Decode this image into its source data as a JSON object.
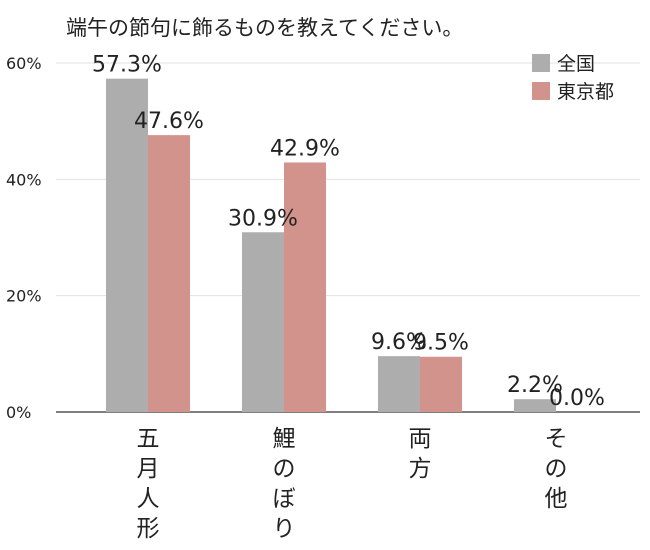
{
  "chart_data": {
    "type": "bar",
    "title": "端午の節句に飾るものを教えてください。",
    "xlabel": "",
    "ylabel": "",
    "categories": [
      "五月人形",
      "鯉のぼり",
      "両方",
      "その他"
    ],
    "series": [
      {
        "name": "全国",
        "color": "#adadad",
        "values": [
          57.3,
          30.9,
          9.6,
          2.2
        ]
      },
      {
        "name": "東京都",
        "color": "#d2938c",
        "values": [
          47.6,
          42.9,
          9.5,
          0.0
        ]
      }
    ],
    "ylim": [
      0,
      60
    ],
    "yticks": [
      0,
      20,
      40,
      60
    ],
    "ytick_labels": [
      "0%",
      "20%",
      "40%",
      "60%"
    ],
    "data_labels": [
      [
        "57.3%",
        "30.9%",
        "9.6%",
        "2.2%"
      ],
      [
        "47.6%",
        "42.9%",
        "9.5%",
        "0.0%"
      ]
    ],
    "grid": true,
    "legend_position": "top-right"
  }
}
